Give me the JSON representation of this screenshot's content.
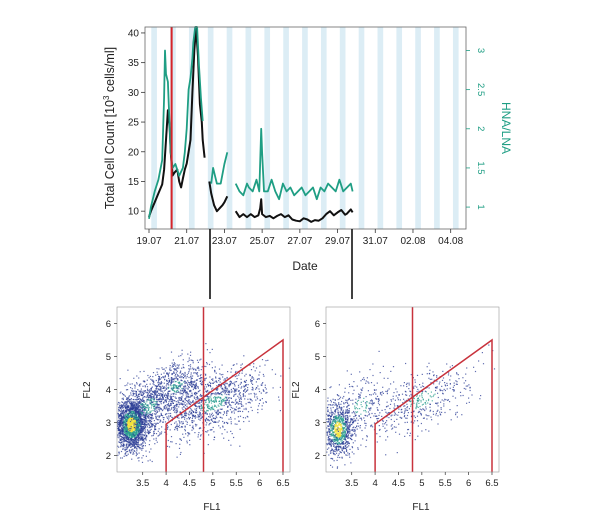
{
  "colors": {
    "black_series": "#111111",
    "teal_series": "#1f9e84",
    "band": "#dcedf5",
    "marker": "#d6242a",
    "gate": "#c8323c",
    "axis": "#333333",
    "density_low": "#2c3e95",
    "density_mid": "#2a9d8f",
    "density_high": "#f2e13a"
  },
  "chart_data": [
    {
      "type": "line",
      "xlabel": "Date",
      "ylabel_left_base": "Total Cell Count [10",
      "ylabel_left_sup": "3",
      "ylabel_left_rest": " cells/ml]",
      "ylabel_right": "HNA/LNA",
      "x_ticks": [
        "19.07",
        "21.07",
        "23.07",
        "25.07",
        "27.07",
        "29.07",
        "31.07",
        "02.08",
        "04.08"
      ],
      "x_range_days": [
        0,
        16.6
      ],
      "y_left_ticks": [
        "10",
        "15",
        "20",
        "25",
        "30",
        "35",
        "40"
      ],
      "y_left_range": [
        7,
        41
      ],
      "y_right_ticks": [
        "1",
        "1.5",
        "2",
        "2.5",
        "3"
      ],
      "y_right_range": [
        0.72,
        3.3
      ],
      "shaded_bands": "alternating light-blue vertical bands (day/night)",
      "marker_line_day": 1.2,
      "series": [
        {
          "axis": "left",
          "color": "black",
          "segments": [
            [
              [
                0,
                9
              ],
              [
                0.1,
                10
              ],
              [
                0.3,
                11.5
              ],
              [
                0.5,
                13
              ],
              [
                0.7,
                14.5
              ],
              [
                0.8,
                17
              ],
              [
                0.9,
                22
              ],
              [
                1.0,
                27
              ],
              [
                1.1,
                24
              ],
              [
                1.15,
                20
              ],
              [
                1.25,
                16
              ],
              [
                1.35,
                16.5
              ],
              [
                1.5,
                17
              ],
              [
                1.6,
                15
              ],
              [
                1.7,
                14
              ],
              [
                1.8,
                15.5
              ],
              [
                1.9,
                17
              ],
              [
                2.0,
                18
              ],
              [
                2.1,
                20
              ],
              [
                2.2,
                22
              ],
              [
                2.3,
                30
              ],
              [
                2.4,
                37
              ],
              [
                2.5,
                41
              ],
              [
                2.6,
                36
              ],
              [
                2.7,
                28
              ],
              [
                2.8,
                25
              ],
              [
                2.85,
                22
              ],
              [
                2.95,
                19
              ]
            ],
            [
              [
                3.2,
                15
              ],
              [
                3.3,
                13
              ],
              [
                3.45,
                11
              ],
              [
                3.6,
                10
              ],
              [
                3.75,
                10.5
              ],
              [
                3.9,
                11
              ],
              [
                4.0,
                11.5
              ],
              [
                4.15,
                12.5
              ]
            ],
            [
              [
                4.6,
                10
              ],
              [
                4.8,
                9
              ],
              [
                5.0,
                9.5
              ],
              [
                5.2,
                9
              ],
              [
                5.4,
                9.5
              ],
              [
                5.6,
                9
              ],
              [
                5.8,
                9.3
              ],
              [
                5.9,
                10.5
              ],
              [
                5.95,
                12
              ],
              [
                6.0,
                9.5
              ],
              [
                6.2,
                9
              ],
              [
                6.4,
                9.2
              ],
              [
                6.6,
                8.8
              ],
              [
                6.8,
                9.2
              ],
              [
                7.0,
                9.5
              ],
              [
                7.2,
                9
              ],
              [
                7.4,
                9.3
              ],
              [
                7.6,
                8.6
              ],
              [
                7.8,
                8.4
              ],
              [
                8.0,
                8.3
              ],
              [
                8.2,
                8.8
              ],
              [
                8.4,
                8.6
              ],
              [
                8.6,
                8.2
              ],
              [
                8.8,
                8.5
              ],
              [
                9.0,
                8.4
              ],
              [
                9.2,
                8.8
              ],
              [
                9.4,
                9.5
              ],
              [
                9.6,
                10
              ],
              [
                9.8,
                9.3
              ],
              [
                10.0,
                9.8
              ],
              [
                10.2,
                10.2
              ],
              [
                10.4,
                9.4
              ],
              [
                10.5,
                9.6
              ],
              [
                10.7,
                10.3
              ],
              [
                10.8,
                9.8
              ]
            ]
          ]
        },
        {
          "axis": "right",
          "color": "teal",
          "segments": [
            [
              [
                0,
                0.85
              ],
              [
                0.1,
                1.0
              ],
              [
                0.3,
                1.2
              ],
              [
                0.5,
                1.35
              ],
              [
                0.7,
                1.6
              ],
              [
                0.8,
                2.4
              ],
              [
                0.85,
                3.0
              ],
              [
                0.9,
                2.7
              ],
              [
                1.0,
                2.6
              ],
              [
                1.05,
                2.3
              ],
              [
                1.15,
                1.7
              ],
              [
                1.25,
                1.5
              ],
              [
                1.4,
                1.55
              ],
              [
                1.6,
                1.4
              ],
              [
                1.8,
                1.5
              ],
              [
                1.9,
                1.7
              ],
              [
                2.0,
                2.0
              ],
              [
                2.1,
                2.5
              ],
              [
                2.2,
                2.65
              ],
              [
                2.3,
                2.9
              ],
              [
                2.35,
                3.1
              ],
              [
                2.45,
                3.3
              ],
              [
                2.55,
                3.3
              ],
              [
                2.65,
                2.8
              ],
              [
                2.75,
                2.4
              ],
              [
                2.85,
                2.1
              ]
            ],
            [
              [
                3.3,
                1.3
              ],
              [
                3.4,
                1.5
              ],
              [
                3.5,
                1.4
              ],
              [
                3.6,
                1.3
              ],
              [
                3.8,
                1.3
              ],
              [
                4.0,
                1.55
              ],
              [
                4.15,
                1.7
              ]
            ],
            [
              [
                4.6,
                1.3
              ],
              [
                4.8,
                1.2
              ],
              [
                5.0,
                1.15
              ],
              [
                5.2,
                1.3
              ],
              [
                5.3,
                1.25
              ],
              [
                5.5,
                1.2
              ],
              [
                5.7,
                1.35
              ],
              [
                5.85,
                1.2
              ],
              [
                5.95,
                2.0
              ],
              [
                6.0,
                1.7
              ],
              [
                6.1,
                1.2
              ],
              [
                6.3,
                1.2
              ],
              [
                6.5,
                1.35
              ],
              [
                6.7,
                1.2
              ],
              [
                6.9,
                1.1
              ],
              [
                7.1,
                1.3
              ],
              [
                7.3,
                1.2
              ],
              [
                7.5,
                1.25
              ],
              [
                7.7,
                1.15
              ],
              [
                7.9,
                1.2
              ],
              [
                8.1,
                1.25
              ],
              [
                8.3,
                1.15
              ],
              [
                8.5,
                1.2
              ],
              [
                8.7,
                1.25
              ],
              [
                8.9,
                1.1
              ],
              [
                9.1,
                1.25
              ],
              [
                9.3,
                1.2
              ],
              [
                9.5,
                1.3
              ],
              [
                9.7,
                1.25
              ],
              [
                9.9,
                1.2
              ],
              [
                10.1,
                1.35
              ],
              [
                10.3,
                1.2
              ],
              [
                10.5,
                1.25
              ],
              [
                10.7,
                1.3
              ],
              [
                10.8,
                1.2
              ]
            ]
          ]
        }
      ]
    },
    {
      "type": "scatter",
      "subtype": "density flow-cytometry plot (left)",
      "xlabel": "FL1",
      "ylabel": "FL2",
      "x_ticks": [
        "3.5",
        "4",
        "4.5",
        "5",
        "5.5",
        "6",
        "6.5"
      ],
      "y_ticks": [
        "2",
        "3",
        "4",
        "5",
        "6"
      ],
      "xlim": [
        2.95,
        6.65
      ],
      "ylim": [
        1.5,
        6.5
      ],
      "gate_polygon": [
        [
          4.0,
          1.5
        ],
        [
          4.0,
          2.95
        ],
        [
          6.5,
          5.5
        ],
        [
          6.5,
          1.5
        ]
      ],
      "vertical_line_x": 4.8,
      "clusters": [
        {
          "cx": 3.25,
          "cy": 2.95,
          "sx": 0.17,
          "sy": 0.38,
          "weight": 0.45
        },
        {
          "cx": 3.6,
          "cy": 3.5,
          "sx": 0.38,
          "sy": 0.48,
          "weight": 0.18
        },
        {
          "cx": 4.2,
          "cy": 4.1,
          "sx": 0.35,
          "sy": 0.35,
          "weight": 0.12
        },
        {
          "cx": 5.0,
          "cy": 3.6,
          "sx": 0.55,
          "sy": 0.45,
          "weight": 0.25
        }
      ]
    },
    {
      "type": "scatter",
      "subtype": "density flow-cytometry plot (right)",
      "xlabel": "FL1",
      "ylabel": "FL2",
      "x_ticks": [
        "3.5",
        "4",
        "4.5",
        "5",
        "5.5",
        "6",
        "6.5"
      ],
      "y_ticks": [
        "2",
        "3",
        "4",
        "5",
        "6"
      ],
      "xlim": [
        2.95,
        6.65
      ],
      "ylim": [
        1.5,
        6.5
      ],
      "gate_polygon": [
        [
          4.0,
          1.5
        ],
        [
          4.0,
          2.95
        ],
        [
          6.5,
          5.5
        ],
        [
          6.5,
          1.5
        ]
      ],
      "vertical_line_x": 4.8,
      "clusters": [
        {
          "cx": 3.2,
          "cy": 2.8,
          "sx": 0.16,
          "sy": 0.4,
          "weight": 0.55
        },
        {
          "cx": 3.7,
          "cy": 3.5,
          "sx": 0.35,
          "sy": 0.5,
          "weight": 0.18
        },
        {
          "cx": 5.0,
          "cy": 3.7,
          "sx": 0.6,
          "sy": 0.45,
          "weight": 0.27
        }
      ]
    }
  ]
}
